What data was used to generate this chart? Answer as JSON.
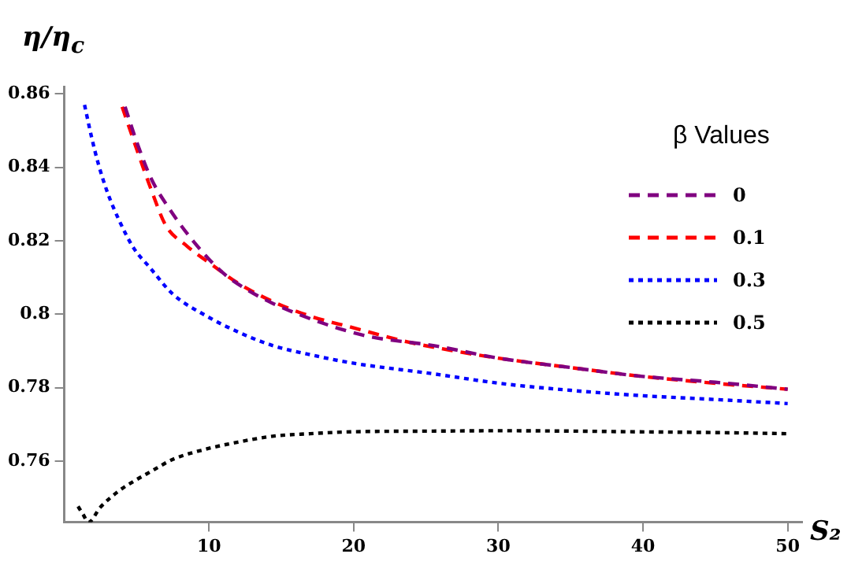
{
  "chart_data": {
    "type": "line",
    "ylabel": "η/η$_{c}$",
    "xlabel": "S₂",
    "legend_title": "β Values",
    "legend": "right",
    "grid": false,
    "marker": "none",
    "xlim": [
      0,
      51
    ],
    "xticks": [
      10,
      20,
      30,
      40,
      50
    ],
    "ylim": [
      0.7434,
      0.862
    ],
    "yticks": [
      0.76,
      0.78,
      0.8,
      0.82,
      0.84,
      0.86
    ],
    "series": [
      {
        "name": "0",
        "color": "#800080",
        "line_style": "dashed",
        "x": [
          4.2,
          5,
          6,
          7.3,
          9,
          10.9,
          12.5,
          14.4,
          18,
          21,
          25.5,
          30.1,
          35,
          39.7,
          45,
          50
        ],
        "values": [
          0.8565,
          0.847,
          0.837,
          0.8285,
          0.8195,
          0.8115,
          0.807,
          0.803,
          0.7974,
          0.794,
          0.7915,
          0.788,
          0.7855,
          0.7832,
          0.7815,
          0.7796
        ]
      },
      {
        "name": "0.1",
        "color": "#ff0000",
        "line_style": "dashed",
        "x": [
          4,
          5,
          6,
          7,
          8.5,
          10.2,
          12,
          14.4,
          17,
          19.8,
          23.7,
          27,
          30.1,
          35,
          39.7,
          45,
          50
        ],
        "values": [
          0.8565,
          0.845,
          0.834,
          0.8243,
          0.8185,
          0.8135,
          0.8085,
          0.8035,
          0.7995,
          0.7965,
          0.7925,
          0.79,
          0.788,
          0.7855,
          0.7832,
          0.7812,
          0.7796
        ]
      },
      {
        "name": "0.3",
        "color": "#0000ff",
        "line_style": "dotted",
        "x": [
          1.4,
          1.9,
          2.35,
          3,
          3.8,
          4.8,
          5.9,
          7.5,
          9.8,
          12,
          14.4,
          17,
          19.8,
          25.5,
          30.1,
          35,
          39.7,
          45,
          50
        ],
        "values": [
          0.857,
          0.848,
          0.841,
          0.833,
          0.8255,
          0.818,
          0.8128,
          0.8055,
          0.7996,
          0.7952,
          0.7915,
          0.789,
          0.7868,
          0.7838,
          0.7812,
          0.7793,
          0.7779,
          0.7768,
          0.7757
        ]
      },
      {
        "name": "0.5",
        "color": "#000000",
        "line_style": "dotted",
        "x": [
          0.95,
          1.3,
          1.67,
          2.5,
          3.8,
          5,
          5.9,
          7.5,
          9.8,
          12,
          14.4,
          17,
          19.8,
          25.5,
          30.1,
          35,
          39.7,
          45,
          50
        ],
        "values": [
          0.7477,
          0.7455,
          0.7434,
          0.7475,
          0.752,
          0.755,
          0.757,
          0.7605,
          0.7633,
          0.7652,
          0.7668,
          0.7675,
          0.768,
          0.7682,
          0.7683,
          0.7682,
          0.768,
          0.7678,
          0.7675
        ]
      }
    ]
  }
}
